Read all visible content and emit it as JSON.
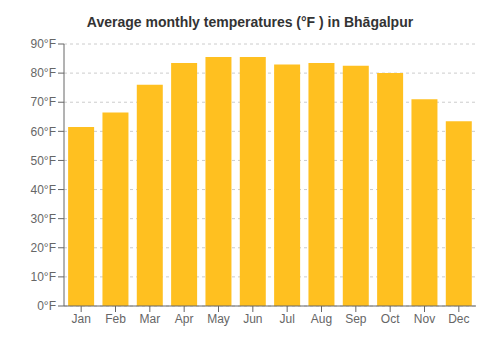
{
  "chart_data": {
    "type": "bar",
    "title": "Average monthly temperatures (°F ) in Bhāgalpur",
    "categories": [
      "Jan",
      "Feb",
      "Mar",
      "Apr",
      "May",
      "Jun",
      "Jul",
      "Aug",
      "Sep",
      "Oct",
      "Nov",
      "Dec"
    ],
    "values": [
      61.5,
      66.5,
      76.0,
      83.5,
      85.5,
      85.5,
      83.0,
      83.5,
      82.5,
      80.0,
      71.0,
      63.5
    ],
    "color": "#FFC020",
    "ylim": [
      0,
      90
    ],
    "yticks": [
      {
        "value": 0,
        "label": "0°F"
      },
      {
        "value": 10,
        "label": "10°F"
      },
      {
        "value": 20,
        "label": "20°F"
      },
      {
        "value": 30,
        "label": "30°F"
      },
      {
        "value": 40,
        "label": "40°F"
      },
      {
        "value": 50,
        "label": "50°F"
      },
      {
        "value": 60,
        "label": "60°F"
      },
      {
        "value": 70,
        "label": "70°F"
      },
      {
        "value": 80,
        "label": "80°F"
      },
      {
        "value": 90,
        "label": "90°F"
      }
    ],
    "grid": true
  }
}
